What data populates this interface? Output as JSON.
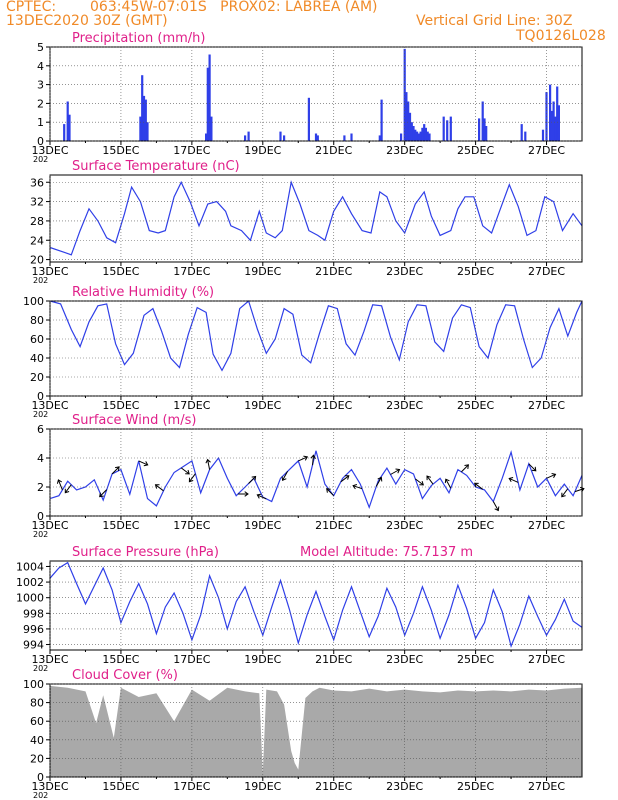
{
  "header": {
    "source": "CPTEC:",
    "location": "063:45W-07:01S   PROX02: LABREA (AM)",
    "run": "13DEC2020 30Z (GMT)",
    "grid_note": "Vertical Grid Line: 30Z",
    "code": "TQ0126L028"
  },
  "colors": {
    "header": "#f08a28",
    "title": "#e0208a",
    "series": "#2f3fe8",
    "cloud": "#a9a9a9",
    "frame": "#000000"
  },
  "x_axis": {
    "tick_labels": [
      "13DEC",
      "15DEC",
      "17DEC",
      "19DEC",
      "21DEC",
      "23DEC",
      "25DEC",
      "27DEC"
    ],
    "tick_days": [
      0,
      2,
      4,
      6,
      8,
      10,
      12,
      14
    ],
    "year_stub": "202",
    "range_days": [
      0,
      15
    ]
  },
  "chart_data": [
    {
      "id": "precip",
      "type": "bar",
      "title": "Precipitation (mm/h)",
      "ylim": [
        0,
        5
      ],
      "yticks": [
        0,
        1,
        2,
        3,
        4,
        5
      ],
      "x_unit": "days since 13DEC 00Z",
      "x": [
        0.4,
        0.5,
        0.55,
        2.55,
        2.6,
        2.65,
        2.7,
        2.75,
        4.4,
        4.45,
        4.5,
        4.55,
        5.5,
        5.6,
        6.5,
        6.6,
        7.3,
        7.5,
        7.55,
        8.3,
        8.5,
        9.3,
        9.35,
        9.9,
        10.0,
        10.05,
        10.1,
        10.15,
        10.2,
        10.25,
        10.3,
        10.35,
        10.4,
        10.45,
        10.5,
        10.55,
        10.6,
        10.65,
        10.7,
        11.1,
        11.2,
        11.3,
        12.1,
        12.2,
        12.25,
        12.3,
        13.3,
        13.4,
        13.9,
        14.0,
        14.1,
        14.15,
        14.2,
        14.25,
        14.3,
        14.35
      ],
      "values": [
        0.9,
        2.1,
        1.4,
        1.3,
        3.5,
        2.4,
        2.2,
        1.0,
        0.4,
        3.9,
        4.6,
        1.3,
        0.3,
        0.5,
        0.5,
        0.3,
        2.3,
        0.4,
        0.3,
        0.3,
        0.4,
        0.3,
        2.2,
        0.4,
        4.9,
        2.6,
        2.1,
        1.5,
        1.0,
        0.8,
        0.6,
        0.5,
        0.4,
        0.5,
        0.7,
        0.9,
        0.7,
        0.5,
        0.4,
        1.3,
        1.1,
        1.3,
        1.2,
        2.1,
        1.2,
        0.8,
        0.9,
        0.5,
        0.6,
        2.6,
        3.0,
        1.6,
        2.1,
        1.3,
        2.9,
        1.9
      ]
    },
    {
      "id": "temp",
      "type": "line",
      "title": "Surface Temperature (nC)",
      "ylim": [
        19.5,
        37.5
      ],
      "yticks": [
        20,
        24,
        28,
        32,
        36
      ],
      "x_unit": "days since 13DEC 00Z",
      "x": [
        0,
        0.4,
        0.6,
        0.85,
        1.1,
        1.35,
        1.6,
        1.85,
        2.1,
        2.3,
        2.55,
        2.8,
        3.05,
        3.25,
        3.5,
        3.7,
        3.95,
        4.2,
        4.45,
        4.7,
        4.95,
        5.1,
        5.4,
        5.65,
        5.9,
        6.1,
        6.35,
        6.55,
        6.8,
        7.05,
        7.3,
        7.55,
        7.75,
        8.0,
        8.25,
        8.5,
        8.8,
        9.05,
        9.3,
        9.5,
        9.75,
        10.0,
        10.3,
        10.55,
        10.75,
        11.0,
        11.3,
        11.5,
        11.7,
        11.95,
        12.2,
        12.45,
        12.7,
        12.95,
        13.2,
        13.45,
        13.7,
        13.95,
        14.2,
        14.45,
        14.75,
        15.0
      ],
      "values": [
        22.5,
        21.5,
        21.0,
        26,
        30.5,
        28,
        24.5,
        23.5,
        29.5,
        35,
        32,
        26,
        25.5,
        26,
        33,
        36,
        32,
        27,
        31.5,
        32,
        30,
        27,
        26,
        24,
        30,
        25.5,
        24.5,
        26,
        36,
        31.5,
        26,
        25,
        24,
        30,
        33,
        29.5,
        26,
        25.5,
        34,
        33,
        28,
        25.5,
        31.5,
        34,
        29,
        25,
        26,
        30.5,
        33,
        33,
        27,
        25.5,
        30.5,
        35.5,
        31,
        25,
        26,
        33,
        32,
        26,
        29.5,
        27
      ]
    },
    {
      "id": "rh",
      "type": "line",
      "title": "Relative Humidity (%)",
      "ylim": [
        0,
        100
      ],
      "yticks": [
        0,
        20,
        40,
        60,
        80,
        100
      ],
      "x_unit": "days since 13DEC 00Z",
      "x": [
        0,
        0.3,
        0.6,
        0.85,
        1.1,
        1.35,
        1.6,
        1.85,
        2.1,
        2.35,
        2.65,
        2.9,
        3.15,
        3.4,
        3.65,
        3.9,
        4.15,
        4.4,
        4.6,
        4.85,
        5.1,
        5.35,
        5.6,
        5.85,
        6.1,
        6.35,
        6.6,
        6.85,
        7.1,
        7.35,
        7.6,
        7.85,
        8.1,
        8.35,
        8.6,
        8.85,
        9.1,
        9.35,
        9.6,
        9.85,
        10.1,
        10.35,
        10.6,
        10.85,
        11.1,
        11.35,
        11.6,
        11.85,
        12.1,
        12.35,
        12.6,
        12.85,
        13.1,
        13.35,
        13.6,
        13.85,
        14.1,
        14.35,
        14.6,
        14.85,
        15.0
      ],
      "values": [
        100,
        97,
        70,
        52,
        78,
        95,
        97,
        55,
        33,
        45,
        85,
        92,
        68,
        40,
        30,
        65,
        93,
        88,
        44,
        27,
        45,
        92,
        100,
        70,
        45,
        60,
        92,
        86,
        43,
        35,
        66,
        95,
        92,
        55,
        43,
        68,
        96,
        95,
        62,
        38,
        78,
        96,
        95,
        57,
        47,
        82,
        96,
        93,
        52,
        40,
        75,
        96,
        95,
        60,
        30,
        40,
        72,
        92,
        63,
        88,
        100
      ]
    },
    {
      "id": "wind",
      "type": "line",
      "title": "Surface Wind (m/s)",
      "ylim": [
        0,
        6
      ],
      "yticks": [
        0,
        2,
        4,
        6
      ],
      "x_unit": "days since 13DEC 00Z",
      "x": [
        0,
        0.25,
        0.5,
        0.75,
        1.0,
        1.25,
        1.5,
        1.75,
        2.0,
        2.25,
        2.5,
        2.75,
        3.0,
        3.25,
        3.5,
        3.75,
        4.0,
        4.25,
        4.5,
        4.75,
        5.0,
        5.25,
        5.5,
        5.75,
        6.0,
        6.25,
        6.5,
        6.75,
        7.0,
        7.25,
        7.5,
        7.75,
        8.0,
        8.25,
        8.5,
        8.75,
        9.0,
        9.25,
        9.5,
        9.75,
        10.0,
        10.25,
        10.5,
        10.75,
        11.0,
        11.25,
        11.5,
        11.75,
        12.0,
        12.25,
        12.5,
        12.75,
        13.0,
        13.25,
        13.5,
        13.75,
        14.0,
        14.25,
        14.5,
        14.75,
        15.0
      ],
      "values": [
        1.2,
        1.4,
        2.4,
        1.8,
        2.0,
        2.5,
        1.1,
        2.9,
        3.2,
        1.5,
        3.8,
        1.2,
        0.7,
        2.0,
        3.0,
        3.4,
        3.8,
        1.6,
        3.2,
        4.0,
        2.6,
        1.4,
        2.0,
        2.6,
        1.3,
        1.0,
        2.6,
        3.2,
        3.8,
        2.0,
        4.5,
        2.2,
        1.4,
        2.6,
        3.2,
        2.2,
        0.6,
        2.4,
        3.3,
        2.2,
        3.2,
        2.9,
        1.2,
        2.1,
        2.6,
        1.6,
        3.2,
        2.8,
        2.0,
        1.8,
        1.0,
        2.6,
        4.4,
        1.8,
        3.6,
        2.0,
        2.6,
        1.4,
        2.2,
        1.4,
        2.8
      ],
      "vectors": [
        {
          "x": 0.35,
          "u": -0.4,
          "v": 1.0
        },
        {
          "x": 0.6,
          "u": -0.6,
          "v": -0.8
        },
        {
          "x": 1.6,
          "u": -0.7,
          "v": -0.7
        },
        {
          "x": 1.75,
          "u": 0.7,
          "v": 0.7
        },
        {
          "x": 2.5,
          "u": 0.9,
          "v": -0.4
        },
        {
          "x": 3.2,
          "u": -0.8,
          "v": 0.6
        },
        {
          "x": 3.7,
          "u": 0.8,
          "v": -0.6
        },
        {
          "x": 4.1,
          "u": -0.6,
          "v": -0.8
        },
        {
          "x": 4.5,
          "u": -0.2,
          "v": 1.0
        },
        {
          "x": 5.3,
          "u": 1.0,
          "v": 0.0
        },
        {
          "x": 5.6,
          "u": 0.7,
          "v": 0.7
        },
        {
          "x": 6.1,
          "u": -0.9,
          "v": 0.4
        },
        {
          "x": 6.7,
          "u": -0.5,
          "v": -0.9
        },
        {
          "x": 7.0,
          "u": 0.9,
          "v": 0.4
        },
        {
          "x": 7.4,
          "u": 0.1,
          "v": 1.0
        },
        {
          "x": 8.0,
          "u": -0.7,
          "v": 0.7
        },
        {
          "x": 8.2,
          "u": 0.8,
          "v": 0.6
        },
        {
          "x": 8.8,
          "u": -0.9,
          "v": 0.3
        },
        {
          "x": 9.2,
          "u": 0.5,
          "v": 0.9
        },
        {
          "x": 9.6,
          "u": 0.9,
          "v": 0.5
        },
        {
          "x": 10.3,
          "u": 0.8,
          "v": -0.6
        },
        {
          "x": 10.8,
          "u": -0.6,
          "v": 0.8
        },
        {
          "x": 11.3,
          "u": -0.5,
          "v": 0.9
        },
        {
          "x": 11.6,
          "u": 0.7,
          "v": 0.7
        },
        {
          "x": 12.2,
          "u": -0.8,
          "v": 0.6
        },
        {
          "x": 12.5,
          "u": 0.5,
          "v": -0.9
        },
        {
          "x": 13.2,
          "u": -0.9,
          "v": 0.4
        },
        {
          "x": 13.5,
          "u": 0.7,
          "v": -0.7
        },
        {
          "x": 14.0,
          "u": 0.9,
          "v": 0.4
        },
        {
          "x": 14.6,
          "u": -0.6,
          "v": -0.8
        },
        {
          "x": 14.8,
          "u": 0.9,
          "v": 0.3
        }
      ]
    },
    {
      "id": "pressure",
      "type": "line",
      "title": "Surface Pressure (hPa)",
      "annotation": "Model Altitude: 75.7137 m",
      "ylim": [
        993.3,
        1004.7
      ],
      "yticks": [
        994,
        996,
        998,
        1000,
        1002,
        1004
      ],
      "x_unit": "days since 13DEC 00Z",
      "x": [
        0,
        0.25,
        0.5,
        0.75,
        1.0,
        1.25,
        1.5,
        1.75,
        2.0,
        2.25,
        2.5,
        2.75,
        3.0,
        3.25,
        3.5,
        3.75,
        4.0,
        4.25,
        4.5,
        4.75,
        5.0,
        5.25,
        5.5,
        5.75,
        6.0,
        6.25,
        6.5,
        6.75,
        7.0,
        7.25,
        7.5,
        7.75,
        8.0,
        8.25,
        8.5,
        8.75,
        9.0,
        9.25,
        9.5,
        9.75,
        10.0,
        10.25,
        10.5,
        10.75,
        11.0,
        11.25,
        11.5,
        11.75,
        12.0,
        12.25,
        12.5,
        12.75,
        13.0,
        13.25,
        13.5,
        13.75,
        14.0,
        14.25,
        14.5,
        14.75,
        15.0
      ],
      "values": [
        1002.5,
        1003.8,
        1004.5,
        1001.8,
        999.2,
        1001.5,
        1003.8,
        1001.0,
        996.8,
        999.5,
        1001.8,
        999.2,
        995.4,
        998.8,
        1000.6,
        998.0,
        994.6,
        997.8,
        1002.8,
        1000.0,
        996.0,
        999.5,
        1001.4,
        998.2,
        995.2,
        998.8,
        1002.2,
        998.5,
        994.2,
        997.8,
        1000.8,
        997.6,
        994.6,
        998.4,
        1001.4,
        998.2,
        995.0,
        997.6,
        1001.2,
        998.8,
        995.2,
        998.0,
        1001.4,
        998.4,
        994.8,
        997.8,
        1001.6,
        998.6,
        994.8,
        996.8,
        1001.0,
        998.2,
        993.8,
        996.6,
        1000.2,
        997.6,
        995.2,
        997.2,
        999.8,
        997.0,
        996.2
      ]
    },
    {
      "id": "cloud",
      "type": "area",
      "title": "Cloud Cover (%)",
      "ylim": [
        0,
        100
      ],
      "yticks": [
        0,
        20,
        40,
        60,
        80,
        100
      ],
      "x_unit": "days since 13DEC 00Z",
      "x": [
        0,
        0.5,
        1.0,
        1.3,
        1.5,
        1.8,
        2.0,
        2.5,
        3.0,
        3.5,
        4.0,
        4.5,
        5.0,
        5.5,
        5.9,
        6.0,
        6.1,
        6.4,
        6.6,
        6.8,
        6.9,
        7.0,
        7.2,
        7.4,
        7.6,
        8.0,
        8.5,
        9.0,
        9.5,
        10.0,
        10.5,
        11.0,
        11.5,
        12.0,
        12.5,
        13.0,
        13.5,
        14.0,
        14.5,
        15.0
      ],
      "values": [
        98,
        96,
        92,
        58,
        88,
        42,
        96,
        86,
        90,
        60,
        94,
        82,
        96,
        92,
        90,
        4,
        94,
        92,
        78,
        28,
        15,
        8,
        85,
        92,
        96,
        93,
        92,
        95,
        92,
        94,
        92,
        91,
        93,
        92,
        93,
        92,
        94,
        93,
        95,
        96
      ]
    }
  ]
}
